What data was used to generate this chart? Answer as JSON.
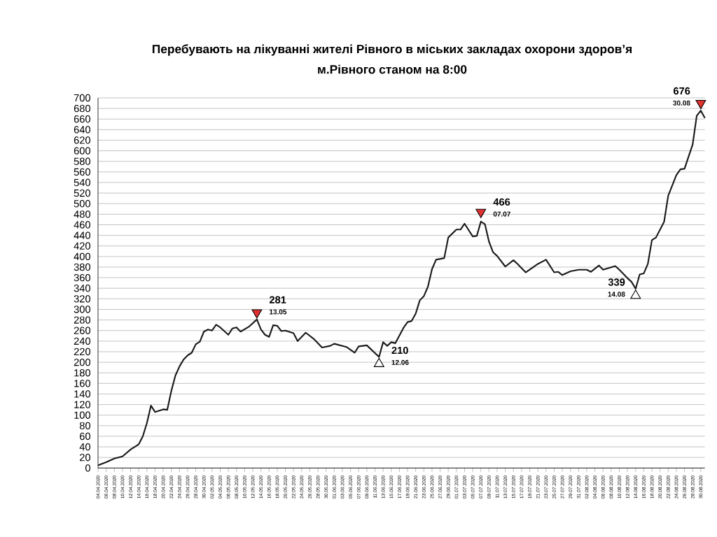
{
  "chart_data": {
    "type": "line",
    "title": "Перебувають на лікуванні жителі Рівного в міських закладах охорони здоров’я",
    "subtitle": "м.Рівного   станом на 8:00",
    "series": [
      {
        "color": "#1a1a1a",
        "x": [
          "2020-04-04",
          "2020-04-06",
          "2020-04-08",
          "2020-04-10",
          "2020-04-12",
          "2020-04-14",
          "2020-04-15",
          "2020-04-16",
          "2020-04-17",
          "2020-04-18",
          "2020-04-20",
          "2020-04-21",
          "2020-04-22",
          "2020-04-23",
          "2020-04-24",
          "2020-04-25",
          "2020-04-26",
          "2020-04-27",
          "2020-04-28",
          "2020-04-29",
          "2020-04-30",
          "2020-05-01",
          "2020-05-02",
          "2020-05-03",
          "2020-05-04",
          "2020-05-06",
          "2020-05-07",
          "2020-05-08",
          "2020-05-09",
          "2020-05-11",
          "2020-05-13",
          "2020-05-14",
          "2020-05-15",
          "2020-05-16",
          "2020-05-17",
          "2020-05-18",
          "2020-05-19",
          "2020-05-20",
          "2020-05-22",
          "2020-05-23",
          "2020-05-25",
          "2020-05-27",
          "2020-05-29",
          "2020-05-31",
          "2020-06-01",
          "2020-06-04",
          "2020-06-06",
          "2020-06-07",
          "2020-06-09",
          "2020-06-12",
          "2020-06-13",
          "2020-06-14",
          "2020-06-15",
          "2020-06-16",
          "2020-06-18",
          "2020-06-19",
          "2020-06-20",
          "2020-06-21",
          "2020-06-22",
          "2020-06-23",
          "2020-06-24",
          "2020-06-25",
          "2020-06-26",
          "2020-06-28",
          "2020-06-29",
          "2020-07-01",
          "2020-07-02",
          "2020-07-03",
          "2020-07-05",
          "2020-07-06",
          "2020-07-07",
          "2020-07-08",
          "2020-07-09",
          "2020-07-10",
          "2020-07-11",
          "2020-07-13",
          "2020-07-15",
          "2020-07-16",
          "2020-07-18",
          "2020-07-21",
          "2020-07-23",
          "2020-07-25",
          "2020-07-26",
          "2020-07-27",
          "2020-07-29",
          "2020-07-31",
          "2020-08-02",
          "2020-08-03",
          "2020-08-05",
          "2020-08-06",
          "2020-08-09",
          "2020-08-10",
          "2020-08-12",
          "2020-08-13",
          "2020-08-14",
          "2020-08-15",
          "2020-08-16",
          "2020-08-17",
          "2020-08-18",
          "2020-08-19",
          "2020-08-21",
          "2020-08-22",
          "2020-08-24",
          "2020-08-25",
          "2020-08-26",
          "2020-08-28",
          "2020-08-29",
          "2020-08-30",
          "2020-08-31"
        ],
        "values": [
          5,
          11,
          18,
          22,
          35,
          45,
          60,
          85,
          118,
          106,
          111,
          110,
          146,
          175,
          192,
          205,
          213,
          218,
          234,
          239,
          258,
          262,
          260,
          271,
          266,
          252,
          264,
          266,
          258,
          267,
          281,
          262,
          252,
          248,
          270,
          269,
          259,
          260,
          255,
          240,
          256,
          244,
          228,
          231,
          235,
          229,
          218,
          230,
          232,
          210,
          238,
          231,
          238,
          236,
          265,
          276,
          278,
          292,
          317,
          325,
          343,
          376,
          394,
          397,
          436,
          451,
          451,
          462,
          438,
          439,
          466,
          461,
          428,
          408,
          401,
          381,
          393,
          386,
          370,
          386,
          394,
          370,
          371,
          365,
          372,
          375,
          375,
          371,
          383,
          375,
          382,
          375,
          359,
          352,
          339,
          366,
          368,
          386,
          431,
          436,
          466,
          515,
          554,
          565,
          566,
          612,
          666,
          676,
          662
        ]
      },
      {
        "type": "scatter",
        "marker": "triangle",
        "color": "#e03030",
        "x": [
          "2020-05-13",
          "2020-07-07",
          "2020-08-30"
        ],
        "values": [
          294,
          484,
          690
        ]
      },
      {
        "type": "scatter",
        "marker": "triangle",
        "color": "#ffffff",
        "x": [
          "2020-06-12",
          "2020-08-14"
        ],
        "values": [
          197,
          326
        ]
      }
    ],
    "annotations": [
      {
        "text": "281",
        "x": "2020-05-13",
        "y": 281
      },
      {
        "text": "13.05",
        "x": "2020-05-13",
        "y": 281
      },
      {
        "text": "210",
        "x": "2020-06-12",
        "y": 210
      },
      {
        "text": "12.06",
        "x": "2020-06-12",
        "y": 210
      },
      {
        "text": "466",
        "x": "2020-07-07",
        "y": 466
      },
      {
        "text": "07.07",
        "x": "2020-07-07",
        "y": 466
      },
      {
        "text": "339",
        "x": "2020-08-14",
        "y": 339
      },
      {
        "text": "14.08",
        "x": "2020-08-14",
        "y": 339
      },
      {
        "text": "676",
        "x": "2020-08-30",
        "y": 676
      },
      {
        "text": "30.08",
        "x": "2020-08-30",
        "y": 676
      }
    ],
    "xlim": [
      "2020-04-04",
      "2020-08-31"
    ],
    "xticks": [
      {
        "value": "2020-04-04",
        "label": "04.04.2020"
      },
      {
        "value": "2020-04-06",
        "label": "06.04.2020"
      },
      {
        "value": "2020-04-08",
        "label": "08.04.2020"
      },
      {
        "value": "2020-04-10",
        "label": "10.04.2020"
      },
      {
        "value": "2020-04-12",
        "label": "12.04.2020"
      },
      {
        "value": "2020-04-14",
        "label": "14.04.2020"
      },
      {
        "value": "2020-04-16",
        "label": "16.04.2020"
      },
      {
        "value": "2020-04-18",
        "label": "18.04.2020"
      },
      {
        "value": "2020-04-20",
        "label": "20.04.2020"
      },
      {
        "value": "2020-04-22",
        "label": "22.04.2020"
      },
      {
        "value": "2020-04-24",
        "label": "24.04.2020"
      },
      {
        "value": "2020-04-26",
        "label": "26.04.2020"
      },
      {
        "value": "2020-04-28",
        "label": "28.04.2020"
      },
      {
        "value": "2020-04-30",
        "label": "30.04.2020"
      },
      {
        "value": "2020-05-02",
        "label": "02.05.2020"
      },
      {
        "value": "2020-05-04",
        "label": "04.05.2020"
      },
      {
        "value": "2020-05-06",
        "label": "06.05.2020"
      },
      {
        "value": "2020-05-08",
        "label": "08.05.2020"
      },
      {
        "value": "2020-05-10",
        "label": "10.05.2020"
      },
      {
        "value": "2020-05-12",
        "label": "12.05.2020"
      },
      {
        "value": "2020-05-14",
        "label": "14.05.2020"
      },
      {
        "value": "2020-05-16",
        "label": "16.05.2020"
      },
      {
        "value": "2020-05-18",
        "label": "18.05.2020"
      },
      {
        "value": "2020-05-20",
        "label": "20.05.2020"
      },
      {
        "value": "2020-05-22",
        "label": "22.05.2020"
      },
      {
        "value": "2020-05-24",
        "label": "24.05.2020"
      },
      {
        "value": "2020-05-26",
        "label": "26.05.2020"
      },
      {
        "value": "2020-05-28",
        "label": "28.05.2020"
      },
      {
        "value": "2020-05-30",
        "label": "30.05.2020"
      },
      {
        "value": "2020-06-01",
        "label": "01.06.2020"
      },
      {
        "value": "2020-06-03",
        "label": "03.06.2020"
      },
      {
        "value": "2020-06-05",
        "label": "05.06.2020"
      },
      {
        "value": "2020-06-07",
        "label": "07.06.2020"
      },
      {
        "value": "2020-06-09",
        "label": "09.06.2020"
      },
      {
        "value": "2020-06-11",
        "label": "11.06.2020"
      },
      {
        "value": "2020-06-13",
        "label": "13.06.2020"
      },
      {
        "value": "2020-06-15",
        "label": "15.06.2020"
      },
      {
        "value": "2020-06-17",
        "label": "17.06.2020"
      },
      {
        "value": "2020-06-19",
        "label": "19.06.2020"
      },
      {
        "value": "2020-06-21",
        "label": "21.06.2020"
      },
      {
        "value": "2020-06-23",
        "label": "23.06.2020"
      },
      {
        "value": "2020-06-25",
        "label": "25.06.2020"
      },
      {
        "value": "2020-06-27",
        "label": "27.06.2020"
      },
      {
        "value": "2020-06-29",
        "label": "29.06.2020"
      },
      {
        "value": "2020-07-01",
        "label": "01.07.2020"
      },
      {
        "value": "2020-07-03",
        "label": "03.07.2020"
      },
      {
        "value": "2020-07-05",
        "label": "05.07.2020"
      },
      {
        "value": "2020-07-07",
        "label": "07.07.2020"
      },
      {
        "value": "2020-07-09",
        "label": "09.07.2020"
      },
      {
        "value": "2020-07-11",
        "label": "11.07.2020"
      },
      {
        "value": "2020-07-13",
        "label": "13.07.2020"
      },
      {
        "value": "2020-07-15",
        "label": "15.07.2020"
      },
      {
        "value": "2020-07-17",
        "label": "17.07.2020"
      },
      {
        "value": "2020-07-19",
        "label": "19.07.2020"
      },
      {
        "value": "2020-07-21",
        "label": "21.07.2020"
      },
      {
        "value": "2020-07-23",
        "label": "23.07.2020"
      },
      {
        "value": "2020-07-25",
        "label": "25.07.2020"
      },
      {
        "value": "2020-07-27",
        "label": "27.07.2020"
      },
      {
        "value": "2020-07-29",
        "label": "29.07.2020"
      },
      {
        "value": "2020-07-31",
        "label": "31.07.2020"
      },
      {
        "value": "2020-08-02",
        "label": "02.08.2020"
      },
      {
        "value": "2020-08-04",
        "label": "04.08.2020"
      },
      {
        "value": "2020-08-06",
        "label": "06.08.2020"
      },
      {
        "value": "2020-08-08",
        "label": "08.08.2020"
      },
      {
        "value": "2020-08-10",
        "label": "10.08.2020"
      },
      {
        "value": "2020-08-12",
        "label": "12.08.2020"
      },
      {
        "value": "2020-08-14",
        "label": "14.08.2020"
      },
      {
        "value": "2020-08-16",
        "label": "16.08.2020"
      },
      {
        "value": "2020-08-18",
        "label": "18.08.2020"
      },
      {
        "value": "2020-08-20",
        "label": "20.08.2020"
      },
      {
        "value": "2020-08-22",
        "label": "22.08.2020"
      },
      {
        "value": "2020-08-24",
        "label": "24.08.2020"
      },
      {
        "value": "2020-08-26",
        "label": "26.08.2020"
      },
      {
        "value": "2020-08-28",
        "label": "28.08.2020"
      },
      {
        "value": "2020-08-30",
        "label": "30.08.2020"
      }
    ],
    "ylim": [
      0,
      700
    ],
    "yticks": [
      0,
      20,
      40,
      60,
      80,
      100,
      120,
      140,
      160,
      180,
      200,
      220,
      240,
      260,
      280,
      300,
      320,
      340,
      360,
      380,
      400,
      420,
      440,
      460,
      480,
      500,
      520,
      540,
      560,
      580,
      600,
      620,
      640,
      660,
      680,
      700
    ],
    "grid": "y"
  }
}
